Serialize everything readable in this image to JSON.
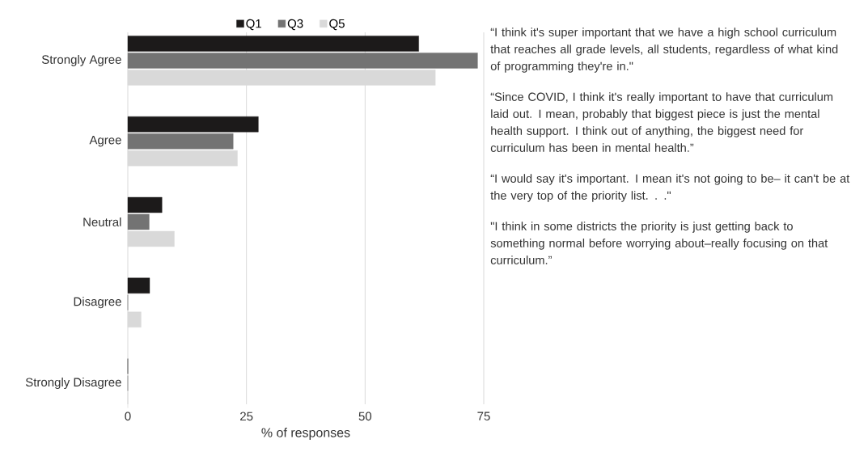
{
  "chart_data": {
    "type": "bar",
    "orientation": "horizontal",
    "xlabel": "% of responses",
    "categories": [
      "Strongly Agree",
      "Agree",
      "Neutral",
      "Disagree",
      "Strongly Disagree"
    ],
    "series": [
      {
        "name": "Q1",
        "color": "#1c1a1a",
        "values": [
          61.3,
          27.5,
          7.2,
          4.6,
          0
        ]
      },
      {
        "name": "Q3",
        "color": "#737373",
        "values": [
          73.7,
          22.2,
          4.5,
          0,
          0
        ]
      },
      {
        "name": "Q5",
        "color": "#d9d9d9",
        "values": [
          64.8,
          23.1,
          9.8,
          2.8,
          0
        ]
      }
    ],
    "xlim": [
      0,
      75
    ],
    "xticks": [
      0,
      25,
      50,
      75
    ],
    "grid": "x",
    "legend": "top",
    "annotations": [
      "“I think it's super important that we have a high school curriculum that reaches all grade levels, all students, regardless of what kind of programming they're in.\"",
      "“Since COVID, I think it's really important to have that curriculum laid out. I mean, probably that biggest piece is just the mental health support. I think out of anything, the biggest need for curriculum has been in mental health.”",
      "“I would say it's important. I mean it's not going to be– it can't be at the very top of the priority list. . .\"",
      "\"I think in some districts the priority is just getting back to something normal before worrying about–really focusing on that curriculum.”"
    ]
  }
}
